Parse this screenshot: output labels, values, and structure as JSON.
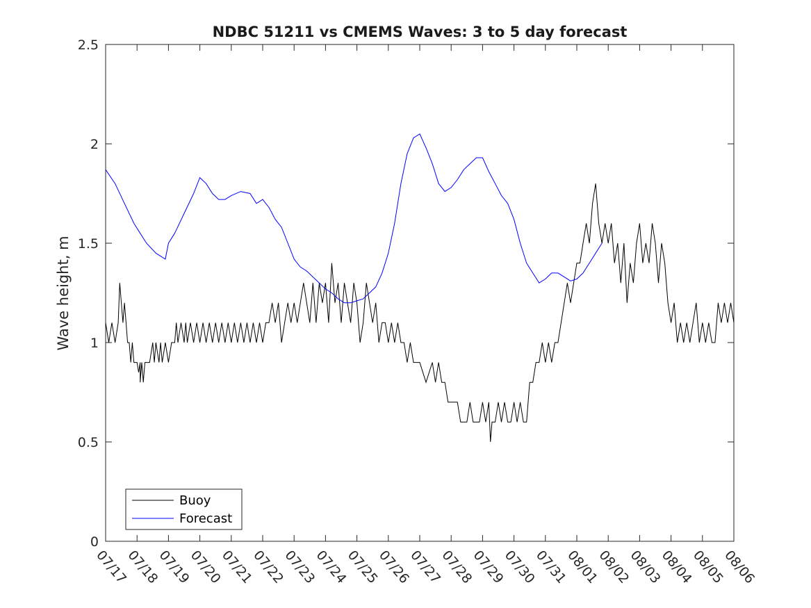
{
  "chart_data": {
    "type": "line",
    "title": "NDBC 51211 vs CMEMS Waves: 3 to 5 day forecast",
    "xlabel": "",
    "ylabel": "Wave height, m",
    "xlim": [
      "07/17",
      "08/06"
    ],
    "ylim": [
      0,
      2.5
    ],
    "x_ticks": [
      "07/17",
      "07/18",
      "07/19",
      "07/20",
      "07/21",
      "07/22",
      "07/23",
      "07/24",
      "07/25",
      "07/26",
      "07/27",
      "07/28",
      "07/29",
      "07/30",
      "07/31",
      "08/01",
      "08/02",
      "08/03",
      "08/04",
      "08/05",
      "08/06"
    ],
    "y_ticks": [
      "0",
      "0.5",
      "1",
      "1.5",
      "2",
      "2.5"
    ],
    "grid": false,
    "legend_position": "bottom-left",
    "colors": {
      "buoy": "#000000",
      "forecast": "#0000ff"
    },
    "series": [
      {
        "name": "Buoy",
        "points": [
          [
            0.0,
            1.1
          ],
          [
            0.1,
            1.0
          ],
          [
            0.2,
            1.1
          ],
          [
            0.3,
            1.0
          ],
          [
            0.4,
            1.1
          ],
          [
            0.45,
            1.3
          ],
          [
            0.5,
            1.2
          ],
          [
            0.55,
            1.1
          ],
          [
            0.6,
            1.2
          ],
          [
            0.65,
            1.1
          ],
          [
            0.7,
            1.0
          ],
          [
            0.75,
            1.0
          ],
          [
            0.8,
            0.9
          ],
          [
            0.85,
            1.0
          ],
          [
            0.9,
            0.9
          ],
          [
            1.0,
            0.9
          ],
          [
            1.05,
            0.85
          ],
          [
            1.1,
            0.9
          ],
          [
            1.1,
            0.8
          ],
          [
            1.15,
            0.9
          ],
          [
            1.2,
            0.8
          ],
          [
            1.25,
            0.9
          ],
          [
            1.3,
            0.9
          ],
          [
            1.4,
            0.9
          ],
          [
            1.5,
            1.0
          ],
          [
            1.55,
            0.9
          ],
          [
            1.6,
            1.0
          ],
          [
            1.7,
            0.9
          ],
          [
            1.75,
            1.0
          ],
          [
            1.8,
            0.9
          ],
          [
            1.9,
            1.0
          ],
          [
            2.0,
            0.9
          ],
          [
            2.1,
            1.0
          ],
          [
            2.2,
            1.0
          ],
          [
            2.25,
            1.1
          ],
          [
            2.3,
            1.0
          ],
          [
            2.4,
            1.1
          ],
          [
            2.5,
            1.0
          ],
          [
            2.55,
            1.1
          ],
          [
            2.6,
            1.0
          ],
          [
            2.7,
            1.1
          ],
          [
            2.8,
            1.0
          ],
          [
            2.9,
            1.1
          ],
          [
            3.0,
            1.0
          ],
          [
            3.1,
            1.1
          ],
          [
            3.2,
            1.0
          ],
          [
            3.3,
            1.1
          ],
          [
            3.4,
            1.0
          ],
          [
            3.5,
            1.1
          ],
          [
            3.6,
            1.0
          ],
          [
            3.7,
            1.1
          ],
          [
            3.8,
            1.0
          ],
          [
            3.9,
            1.1
          ],
          [
            4.0,
            1.0
          ],
          [
            4.1,
            1.1
          ],
          [
            4.2,
            1.0
          ],
          [
            4.3,
            1.1
          ],
          [
            4.4,
            1.0
          ],
          [
            4.5,
            1.1
          ],
          [
            4.6,
            1.0
          ],
          [
            4.7,
            1.1
          ],
          [
            4.8,
            1.0
          ],
          [
            4.9,
            1.1
          ],
          [
            5.0,
            1.0
          ],
          [
            5.1,
            1.1
          ],
          [
            5.2,
            1.1
          ],
          [
            5.3,
            1.2
          ],
          [
            5.4,
            1.1
          ],
          [
            5.5,
            1.2
          ],
          [
            5.6,
            1.0
          ],
          [
            5.7,
            1.1
          ],
          [
            5.8,
            1.2
          ],
          [
            5.9,
            1.1
          ],
          [
            6.0,
            1.2
          ],
          [
            6.1,
            1.1
          ],
          [
            6.2,
            1.2
          ],
          [
            6.3,
            1.3
          ],
          [
            6.4,
            1.2
          ],
          [
            6.5,
            1.1
          ],
          [
            6.6,
            1.3
          ],
          [
            6.7,
            1.1
          ],
          [
            6.8,
            1.3
          ],
          [
            6.9,
            1.2
          ],
          [
            7.0,
            1.3
          ],
          [
            7.1,
            1.1
          ],
          [
            7.2,
            1.4
          ],
          [
            7.3,
            1.2
          ],
          [
            7.4,
            1.3
          ],
          [
            7.5,
            1.1
          ],
          [
            7.6,
            1.3
          ],
          [
            7.7,
            1.2
          ],
          [
            7.8,
            1.1
          ],
          [
            7.9,
            1.3
          ],
          [
            8.0,
            1.2
          ],
          [
            8.1,
            1.0
          ],
          [
            8.2,
            1.1
          ],
          [
            8.3,
            1.3
          ],
          [
            8.4,
            1.2
          ],
          [
            8.5,
            1.1
          ],
          [
            8.6,
            1.2
          ],
          [
            8.7,
            1.0
          ],
          [
            8.8,
            1.1
          ],
          [
            8.9,
            1.1
          ],
          [
            9.0,
            1.0
          ],
          [
            9.1,
            1.1
          ],
          [
            9.2,
            1.0
          ],
          [
            9.3,
            1.1
          ],
          [
            9.4,
            1.0
          ],
          [
            9.5,
            1.0
          ],
          [
            9.6,
            0.9
          ],
          [
            9.7,
            1.0
          ],
          [
            9.8,
            0.9
          ],
          [
            10.0,
            0.9
          ],
          [
            10.2,
            0.8
          ],
          [
            10.4,
            0.9
          ],
          [
            10.5,
            0.8
          ],
          [
            10.6,
            0.9
          ],
          [
            10.7,
            0.8
          ],
          [
            10.8,
            0.8
          ],
          [
            10.9,
            0.7
          ],
          [
            11.0,
            0.7
          ],
          [
            11.2,
            0.7
          ],
          [
            11.3,
            0.6
          ],
          [
            11.5,
            0.6
          ],
          [
            11.6,
            0.7
          ],
          [
            11.7,
            0.6
          ],
          [
            11.9,
            0.6
          ],
          [
            12.0,
            0.7
          ],
          [
            12.1,
            0.6
          ],
          [
            12.2,
            0.7
          ],
          [
            12.25,
            0.5
          ],
          [
            12.3,
            0.6
          ],
          [
            12.4,
            0.6
          ],
          [
            12.5,
            0.7
          ],
          [
            12.6,
            0.6
          ],
          [
            12.7,
            0.7
          ],
          [
            12.8,
            0.6
          ],
          [
            12.9,
            0.6
          ],
          [
            13.0,
            0.7
          ],
          [
            13.1,
            0.6
          ],
          [
            13.2,
            0.7
          ],
          [
            13.3,
            0.6
          ],
          [
            13.4,
            0.6
          ],
          [
            13.5,
            0.8
          ],
          [
            13.6,
            0.8
          ],
          [
            13.7,
            0.9
          ],
          [
            13.8,
            0.9
          ],
          [
            13.9,
            1.0
          ],
          [
            14.0,
            0.9
          ],
          [
            14.1,
            1.0
          ],
          [
            14.2,
            0.9
          ],
          [
            14.3,
            1.0
          ],
          [
            14.4,
            1.0
          ],
          [
            14.5,
            1.1
          ],
          [
            14.6,
            1.2
          ],
          [
            14.7,
            1.3
          ],
          [
            14.8,
            1.2
          ],
          [
            14.9,
            1.3
          ],
          [
            15.0,
            1.4
          ],
          [
            15.1,
            1.4
          ],
          [
            15.2,
            1.5
          ],
          [
            15.3,
            1.6
          ],
          [
            15.4,
            1.5
          ],
          [
            15.5,
            1.7
          ],
          [
            15.6,
            1.8
          ],
          [
            15.7,
            1.6
          ],
          [
            15.8,
            1.5
          ],
          [
            15.9,
            1.6
          ],
          [
            16.0,
            1.5
          ],
          [
            16.1,
            1.6
          ],
          [
            16.2,
            1.4
          ],
          [
            16.3,
            1.5
          ],
          [
            16.4,
            1.3
          ],
          [
            16.5,
            1.5
          ],
          [
            16.6,
            1.2
          ],
          [
            16.7,
            1.4
          ],
          [
            16.8,
            1.3
          ],
          [
            16.9,
            1.5
          ],
          [
            17.0,
            1.6
          ],
          [
            17.1,
            1.4
          ],
          [
            17.2,
            1.5
          ],
          [
            17.3,
            1.4
          ],
          [
            17.4,
            1.6
          ],
          [
            17.5,
            1.5
          ],
          [
            17.6,
            1.3
          ],
          [
            17.7,
            1.5
          ],
          [
            17.8,
            1.4
          ],
          [
            17.9,
            1.2
          ],
          [
            18.0,
            1.1
          ],
          [
            18.1,
            1.2
          ],
          [
            18.2,
            1.0
          ],
          [
            18.3,
            1.1
          ],
          [
            18.4,
            1.0
          ],
          [
            18.5,
            1.1
          ],
          [
            18.6,
            1.0
          ],
          [
            18.7,
            1.1
          ],
          [
            18.8,
            1.2
          ],
          [
            18.9,
            1.0
          ],
          [
            19.0,
            1.1
          ],
          [
            19.1,
            1.0
          ],
          [
            19.2,
            1.1
          ],
          [
            19.3,
            1.0
          ],
          [
            19.4,
            1.0
          ],
          [
            19.5,
            1.2
          ],
          [
            19.6,
            1.1
          ],
          [
            19.7,
            1.2
          ],
          [
            19.8,
            1.1
          ],
          [
            19.9,
            1.2
          ],
          [
            20.0,
            1.1
          ]
        ]
      },
      {
        "name": "Forecast",
        "points": [
          [
            0.0,
            1.87
          ],
          [
            0.3,
            1.8
          ],
          [
            0.6,
            1.7
          ],
          [
            0.9,
            1.6
          ],
          [
            1.1,
            1.55
          ],
          [
            1.3,
            1.5
          ],
          [
            1.6,
            1.45
          ],
          [
            1.9,
            1.42
          ],
          [
            2.0,
            1.5
          ],
          [
            2.2,
            1.55
          ],
          [
            2.5,
            1.65
          ],
          [
            2.8,
            1.75
          ],
          [
            3.0,
            1.83
          ],
          [
            3.2,
            1.8
          ],
          [
            3.4,
            1.75
          ],
          [
            3.6,
            1.72
          ],
          [
            3.8,
            1.72
          ],
          [
            4.0,
            1.74
          ],
          [
            4.3,
            1.76
          ],
          [
            4.6,
            1.75
          ],
          [
            4.8,
            1.7
          ],
          [
            5.0,
            1.72
          ],
          [
            5.2,
            1.68
          ],
          [
            5.4,
            1.62
          ],
          [
            5.6,
            1.58
          ],
          [
            5.8,
            1.5
          ],
          [
            6.0,
            1.42
          ],
          [
            6.2,
            1.38
          ],
          [
            6.4,
            1.36
          ],
          [
            6.6,
            1.33
          ],
          [
            6.8,
            1.3
          ],
          [
            7.0,
            1.27
          ],
          [
            7.2,
            1.25
          ],
          [
            7.4,
            1.22
          ],
          [
            7.6,
            1.2
          ],
          [
            7.8,
            1.2
          ],
          [
            8.0,
            1.21
          ],
          [
            8.2,
            1.22
          ],
          [
            8.4,
            1.25
          ],
          [
            8.6,
            1.28
          ],
          [
            8.8,
            1.35
          ],
          [
            9.0,
            1.45
          ],
          [
            9.2,
            1.6
          ],
          [
            9.4,
            1.8
          ],
          [
            9.6,
            1.95
          ],
          [
            9.8,
            2.03
          ],
          [
            10.0,
            2.05
          ],
          [
            10.2,
            1.98
          ],
          [
            10.4,
            1.9
          ],
          [
            10.6,
            1.8
          ],
          [
            10.8,
            1.76
          ],
          [
            11.0,
            1.78
          ],
          [
            11.2,
            1.82
          ],
          [
            11.4,
            1.87
          ],
          [
            11.6,
            1.9
          ],
          [
            11.8,
            1.93
          ],
          [
            12.0,
            1.93
          ],
          [
            12.2,
            1.86
          ],
          [
            12.4,
            1.8
          ],
          [
            12.6,
            1.74
          ],
          [
            12.8,
            1.7
          ],
          [
            13.0,
            1.62
          ],
          [
            13.2,
            1.5
          ],
          [
            13.4,
            1.4
          ],
          [
            13.6,
            1.35
          ],
          [
            13.8,
            1.3
          ],
          [
            14.0,
            1.32
          ],
          [
            14.2,
            1.35
          ],
          [
            14.4,
            1.35
          ],
          [
            14.6,
            1.33
          ],
          [
            14.8,
            1.31
          ],
          [
            15.0,
            1.32
          ],
          [
            15.2,
            1.35
          ],
          [
            15.4,
            1.4
          ],
          [
            15.6,
            1.45
          ],
          [
            15.8,
            1.5
          ]
        ]
      }
    ]
  },
  "legend": {
    "items": [
      {
        "label": "Buoy"
      },
      {
        "label": "Forecast"
      }
    ]
  }
}
